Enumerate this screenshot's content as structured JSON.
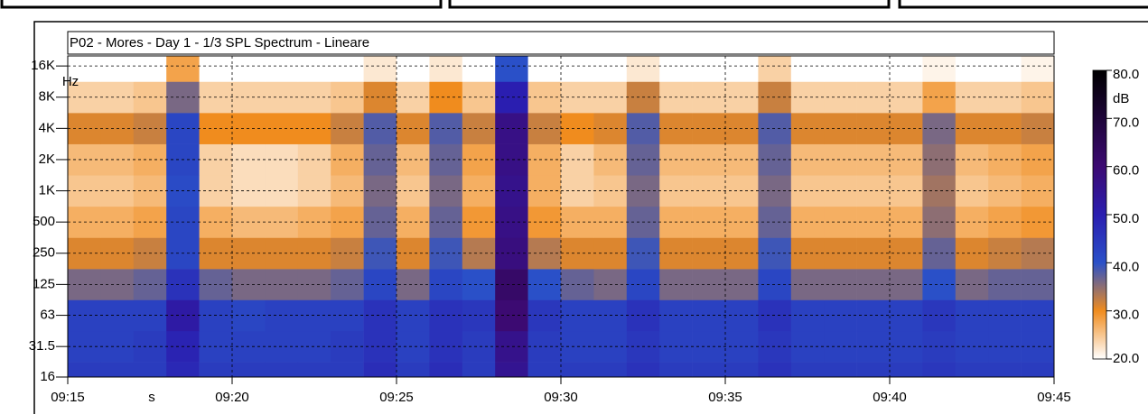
{
  "chart_data": {
    "type": "heatmap",
    "title": "P02 - Mores - Day 1 - 1/3 SPL Spectrum - Lineare",
    "x_label": "s",
    "y_label": "Hz",
    "colorbar_label": "dB",
    "log_y": true,
    "grid": true,
    "x": [
      555,
      556,
      557,
      558,
      559,
      560,
      561,
      562,
      563,
      564,
      565,
      566,
      567,
      568,
      569,
      570,
      571,
      572,
      573,
      574,
      575,
      576,
      577,
      578,
      579,
      580,
      581,
      582,
      583,
      584
    ],
    "y": [
      16,
      31.5,
      63,
      125,
      250,
      500,
      1000,
      2000,
      4000,
      8000,
      16000
    ],
    "z": [
      [
        44,
        44,
        44,
        48,
        44,
        44,
        44,
        44,
        44,
        47,
        44,
        47,
        44,
        55,
        44,
        44,
        44,
        46,
        44,
        44,
        44,
        46,
        44,
        44,
        44,
        44,
        45,
        44,
        44,
        44
      ],
      [
        43,
        43,
        44,
        49,
        43,
        43,
        43,
        43,
        44,
        46,
        43,
        46,
        44,
        56,
        44,
        43,
        43,
        45,
        43,
        43,
        43,
        45,
        43,
        43,
        43,
        43,
        44,
        43,
        43,
        43
      ],
      [
        43,
        43,
        43,
        52,
        43,
        42,
        43,
        43,
        43,
        46,
        43,
        46,
        45,
        60,
        45,
        43,
        43,
        46,
        43,
        43,
        43,
        46,
        43,
        43,
        43,
        43,
        45,
        43,
        43,
        43
      ],
      [
        36,
        36,
        37,
        46,
        37,
        36,
        36,
        36,
        37,
        42,
        36,
        42,
        40,
        62,
        40,
        37,
        36,
        42,
        36,
        36,
        36,
        42,
        36,
        36,
        36,
        36,
        40,
        36,
        37,
        37
      ],
      [
        31,
        31,
        32,
        42,
        31,
        31,
        31,
        31,
        32,
        39,
        31,
        39,
        33,
        58,
        33,
        31,
        31,
        39,
        31,
        31,
        31,
        39,
        31,
        31,
        31,
        31,
        37,
        31,
        32,
        33
      ],
      [
        27,
        27,
        28,
        42,
        27,
        26,
        26,
        27,
        28,
        37,
        27,
        37,
        29,
        57,
        29,
        27,
        27,
        37,
        27,
        27,
        27,
        37,
        27,
        27,
        27,
        27,
        35,
        27,
        28,
        29
      ],
      [
        25,
        25,
        26,
        41,
        24,
        23,
        23,
        24,
        26,
        36,
        25,
        36,
        27,
        56,
        27,
        24,
        25,
        36,
        25,
        25,
        25,
        36,
        25,
        25,
        25,
        25,
        34,
        25,
        26,
        27
      ],
      [
        26,
        26,
        27,
        42,
        24,
        23,
        23,
        24,
        27,
        37,
        26,
        37,
        28,
        57,
        27,
        24,
        26,
        37,
        26,
        26,
        26,
        37,
        26,
        26,
        26,
        26,
        35,
        26,
        27,
        28
      ],
      [
        31,
        31,
        32,
        42,
        30,
        30,
        30,
        30,
        32,
        38,
        31,
        38,
        32,
        57,
        32,
        30,
        31,
        38,
        31,
        31,
        31,
        38,
        31,
        31,
        31,
        31,
        36,
        31,
        31,
        32
      ],
      [
        24,
        24,
        25,
        36,
        24,
        24,
        24,
        24,
        25,
        31,
        24,
        30,
        25,
        50,
        25,
        24,
        24,
        32,
        24,
        24,
        24,
        32,
        24,
        24,
        24,
        24,
        28,
        24,
        24,
        25
      ],
      [
        20,
        20,
        20,
        28,
        20,
        20,
        20,
        20,
        20,
        22,
        20,
        22,
        20,
        40,
        20,
        20,
        20,
        22,
        20,
        20,
        20,
        24,
        20,
        20,
        20,
        20,
        21,
        20,
        20,
        21
      ]
    ],
    "xlim": [
      555,
      585
    ],
    "xticks": [
      {
        "value": 555,
        "label": "09:15"
      },
      {
        "value": 560,
        "label": "09:20"
      },
      {
        "value": 565,
        "label": "09:25"
      },
      {
        "value": 570,
        "label": "09:30"
      },
      {
        "value": 575,
        "label": "09:35"
      },
      {
        "value": 580,
        "label": "09:40"
      },
      {
        "value": 585,
        "label": "09:45"
      }
    ],
    "ylim": [
      16,
      20000
    ],
    "yticks": [
      16,
      {
        "value": 31.5,
        "label": "31.5"
      },
      63,
      125,
      250,
      500,
      {
        "value": 1000,
        "label": "1K"
      },
      {
        "value": 2000,
        "label": "2K"
      },
      {
        "value": 4000,
        "label": "4K"
      },
      {
        "value": 8000,
        "label": "8K"
      },
      {
        "value": 16000,
        "label": "16K"
      }
    ],
    "zlim": [
      20,
      80
    ],
    "zticks": [
      {
        "value": 80,
        "label": "80.0"
      },
      {
        "value": 70,
        "label": "70.0"
      },
      {
        "value": 60,
        "label": "60.0"
      },
      {
        "value": 50,
        "label": "50.0"
      },
      {
        "value": 40,
        "label": "40.0"
      },
      {
        "value": 30,
        "label": "30.0"
      },
      {
        "value": 20,
        "label": "20.0"
      }
    ],
    "colorscale": [
      [
        20,
        "#ffffff"
      ],
      [
        30,
        "#f08c1e"
      ],
      [
        40,
        "#2a50c8"
      ],
      [
        50,
        "#2a1eb0"
      ],
      [
        60,
        "#3c0a72"
      ],
      [
        80,
        "#000000"
      ]
    ]
  }
}
